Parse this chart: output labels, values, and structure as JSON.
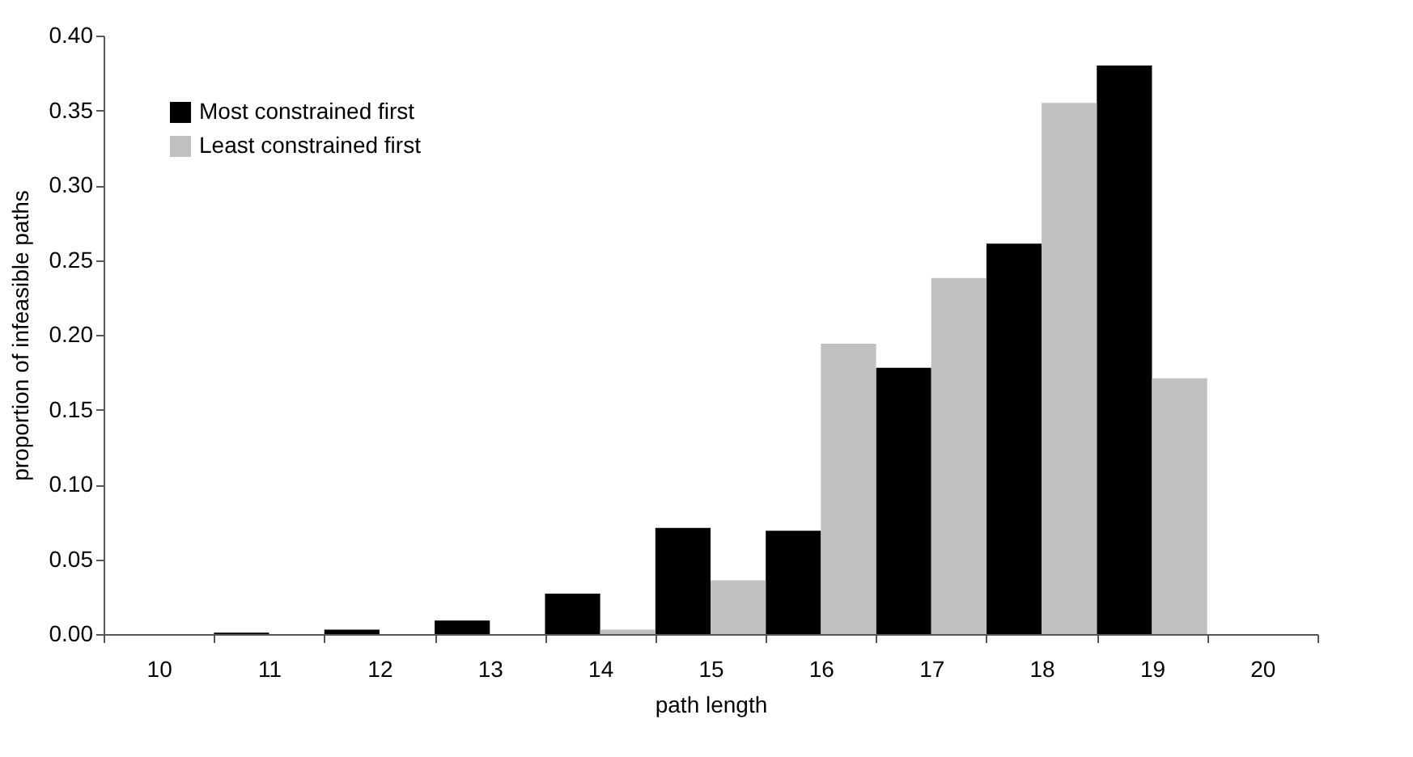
{
  "chart_data": {
    "type": "bar",
    "xlabel": "path length",
    "ylabel": "proportion of infeasible paths",
    "categories": [
      "10",
      "11",
      "12",
      "13",
      "14",
      "15",
      "16",
      "17",
      "18",
      "19",
      "20"
    ],
    "series": [
      {
        "name": "Most constrained first",
        "color": "#000000",
        "values": [
          0,
          0.001,
          0.003,
          0.009,
          0.027,
          0.071,
          0.069,
          0.178,
          0.261,
          0.38,
          0
        ]
      },
      {
        "name": "Least constrained first",
        "color": "#c0c0c0",
        "values": [
          0,
          0,
          0,
          0,
          0.003,
          0.036,
          0.194,
          0.238,
          0.355,
          0.171,
          0
        ]
      }
    ],
    "ylim": [
      0,
      0.4
    ],
    "yticks": [
      {
        "value": 0,
        "label": "0.00"
      },
      {
        "value": 0.05,
        "label": "0.05"
      },
      {
        "value": 0.1,
        "label": "0.10"
      },
      {
        "value": 0.15,
        "label": "0.15"
      },
      {
        "value": 0.2,
        "label": "0.20"
      },
      {
        "value": 0.25,
        "label": "0.25"
      },
      {
        "value": 0.3,
        "label": "0.30"
      },
      {
        "value": 0.35,
        "label": "0.35"
      },
      {
        "value": 0.4,
        "label": "0.40"
      }
    ],
    "grid": false,
    "legend": "top left"
  }
}
